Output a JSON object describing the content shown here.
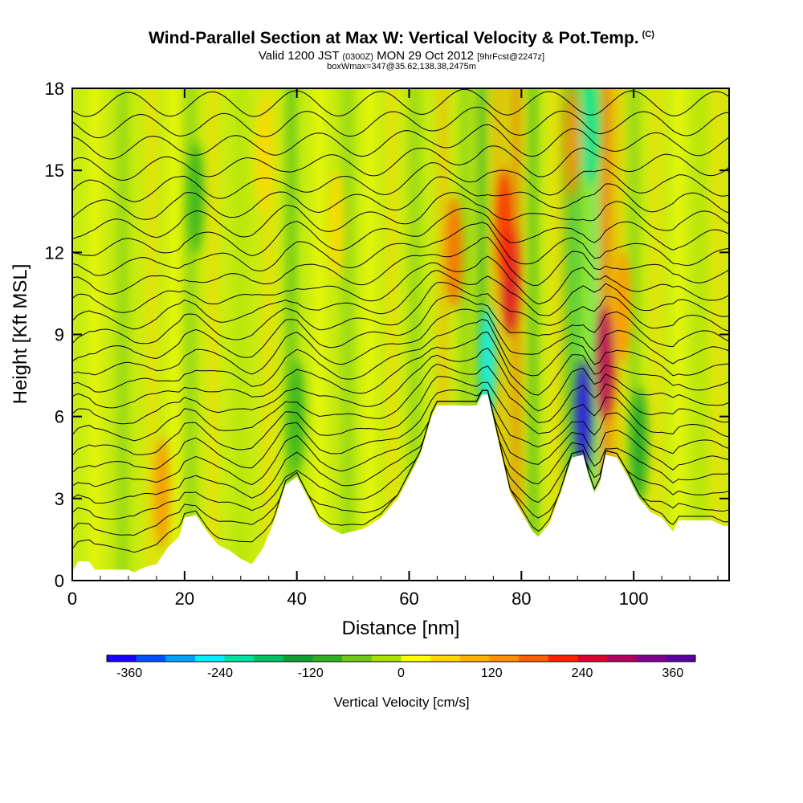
{
  "header": {
    "title": "Wind-Parallel Section at Max W: Vertical Velocity & Pot.Temp.",
    "title_mark": "(C)",
    "valid_prefix": "Valid 1200 JST",
    "valid_zulu": "(0300Z)",
    "valid_date": "MON 29 Oct 2012",
    "forecast": "[9hrFcst@2247z]",
    "box": "boxWmax=347@35.62,138.38,2475m"
  },
  "chart_data": {
    "type": "heatmap",
    "xlabel": "Distance [nm]",
    "ylabel": "Height [Kft MSL]",
    "xlim": [
      0,
      117
    ],
    "ylim": [
      0,
      18
    ],
    "x_ticks": [
      0,
      20,
      40,
      60,
      80,
      100
    ],
    "y_ticks": [
      0,
      3,
      6,
      9,
      12,
      15,
      18
    ],
    "colorbar": {
      "title": "Vertical Velocity [cm/s]",
      "range": [
        -390,
        390
      ],
      "tick_values": [
        -360,
        -240,
        -120,
        0,
        120,
        240,
        360
      ],
      "tick_labels": [
        "-360",
        "-240",
        "-120",
        "0",
        "120",
        "240",
        "360"
      ],
      "colors": [
        "#1a00ff",
        "#0050ff",
        "#00a0ff",
        "#00f0ff",
        "#00e0a0",
        "#00c060",
        "#10a030",
        "#30b020",
        "#70c818",
        "#a8e000",
        "#ffff00",
        "#ffd800",
        "#ffb000",
        "#ff9000",
        "#ff6000",
        "#ff2000",
        "#e00030",
        "#b00060",
        "#800090",
        "#5a00a0"
      ]
    },
    "terrain_kft": [
      {
        "x": 0,
        "h": 0.3
      },
      {
        "x": 1,
        "h": 0.7
      },
      {
        "x": 3,
        "h": 0.7
      },
      {
        "x": 4,
        "h": 0.4
      },
      {
        "x": 10,
        "h": 0.4
      },
      {
        "x": 11,
        "h": 0.3
      },
      {
        "x": 13,
        "h": 0.5
      },
      {
        "x": 15,
        "h": 0.6
      },
      {
        "x": 17,
        "h": 1.2
      },
      {
        "x": 19,
        "h": 1.6
      },
      {
        "x": 20,
        "h": 2.3
      },
      {
        "x": 22,
        "h": 2.4
      },
      {
        "x": 24,
        "h": 1.8
      },
      {
        "x": 26,
        "h": 1.3
      },
      {
        "x": 28,
        "h": 1.1
      },
      {
        "x": 30,
        "h": 0.8
      },
      {
        "x": 32,
        "h": 0.6
      },
      {
        "x": 34,
        "h": 1.2
      },
      {
        "x": 36,
        "h": 2.2
      },
      {
        "x": 38,
        "h": 3.5
      },
      {
        "x": 40,
        "h": 3.8
      },
      {
        "x": 42,
        "h": 3.0
      },
      {
        "x": 44,
        "h": 2.2
      },
      {
        "x": 46,
        "h": 1.9
      },
      {
        "x": 48,
        "h": 1.7
      },
      {
        "x": 52,
        "h": 1.9
      },
      {
        "x": 55,
        "h": 2.3
      },
      {
        "x": 58,
        "h": 3.0
      },
      {
        "x": 60,
        "h": 3.8
      },
      {
        "x": 62,
        "h": 4.6
      },
      {
        "x": 64,
        "h": 6.0
      },
      {
        "x": 65,
        "h": 6.4
      },
      {
        "x": 72,
        "h": 6.4
      },
      {
        "x": 73,
        "h": 6.8
      },
      {
        "x": 74,
        "h": 6.8
      },
      {
        "x": 76,
        "h": 5.0
      },
      {
        "x": 78,
        "h": 3.2
      },
      {
        "x": 80,
        "h": 2.5
      },
      {
        "x": 82,
        "h": 1.8
      },
      {
        "x": 83,
        "h": 1.6
      },
      {
        "x": 85,
        "h": 2.1
      },
      {
        "x": 87,
        "h": 3.2
      },
      {
        "x": 89,
        "h": 4.5
      },
      {
        "x": 91,
        "h": 4.6
      },
      {
        "x": 92,
        "h": 3.8
      },
      {
        "x": 93,
        "h": 3.2
      },
      {
        "x": 94,
        "h": 3.6
      },
      {
        "x": 95,
        "h": 4.6
      },
      {
        "x": 97,
        "h": 4.5
      },
      {
        "x": 99,
        "h": 3.8
      },
      {
        "x": 101,
        "h": 3.0
      },
      {
        "x": 103,
        "h": 2.5
      },
      {
        "x": 105,
        "h": 2.3
      },
      {
        "x": 107,
        "h": 1.8
      },
      {
        "x": 108,
        "h": 2.2
      },
      {
        "x": 110,
        "h": 2.2
      },
      {
        "x": 114,
        "h": 2.2
      },
      {
        "x": 116,
        "h": 2.0
      },
      {
        "x": 117,
        "h": 2.0
      }
    ],
    "isentropes_kft": [
      1.0,
      1.6,
      2.2,
      2.8,
      3.4,
      4.0,
      4.6,
      5.2,
      5.8,
      6.4,
      7.0,
      7.6,
      8.2,
      8.8,
      9.4,
      10.0,
      10.7,
      11.4,
      12.1,
      12.8,
      13.5,
      14.2,
      15.0,
      15.8,
      16.6,
      17.4
    ],
    "updrafts": [
      {
        "x": 16,
        "z": 3.2,
        "w": 120
      },
      {
        "x": 34,
        "z": 15.5,
        "w": 60
      },
      {
        "x": 47,
        "z": 13.0,
        "w": 60
      },
      {
        "x": 68,
        "z": 12.0,
        "w": 180
      },
      {
        "x": 78,
        "z": 11.0,
        "w": 240
      },
      {
        "x": 77,
        "z": 13.0,
        "w": 200
      },
      {
        "x": 89,
        "z": 16.0,
        "w": 150
      },
      {
        "x": 95,
        "z": 8.0,
        "w": 300
      },
      {
        "x": 98,
        "z": 10.0,
        "w": 150
      }
    ],
    "downdrafts": [
      {
        "x": 74,
        "z": 8.0,
        "w": -240
      },
      {
        "x": 91,
        "z": 6.0,
        "w": -360
      },
      {
        "x": 92,
        "z": 16.5,
        "w": -200
      },
      {
        "x": 40,
        "z": 6.0,
        "w": -90
      },
      {
        "x": 22,
        "z": 14.0,
        "w": -90
      },
      {
        "x": 101,
        "z": 5.0,
        "w": -120
      }
    ],
    "grid": false,
    "legend": "bottom"
  }
}
